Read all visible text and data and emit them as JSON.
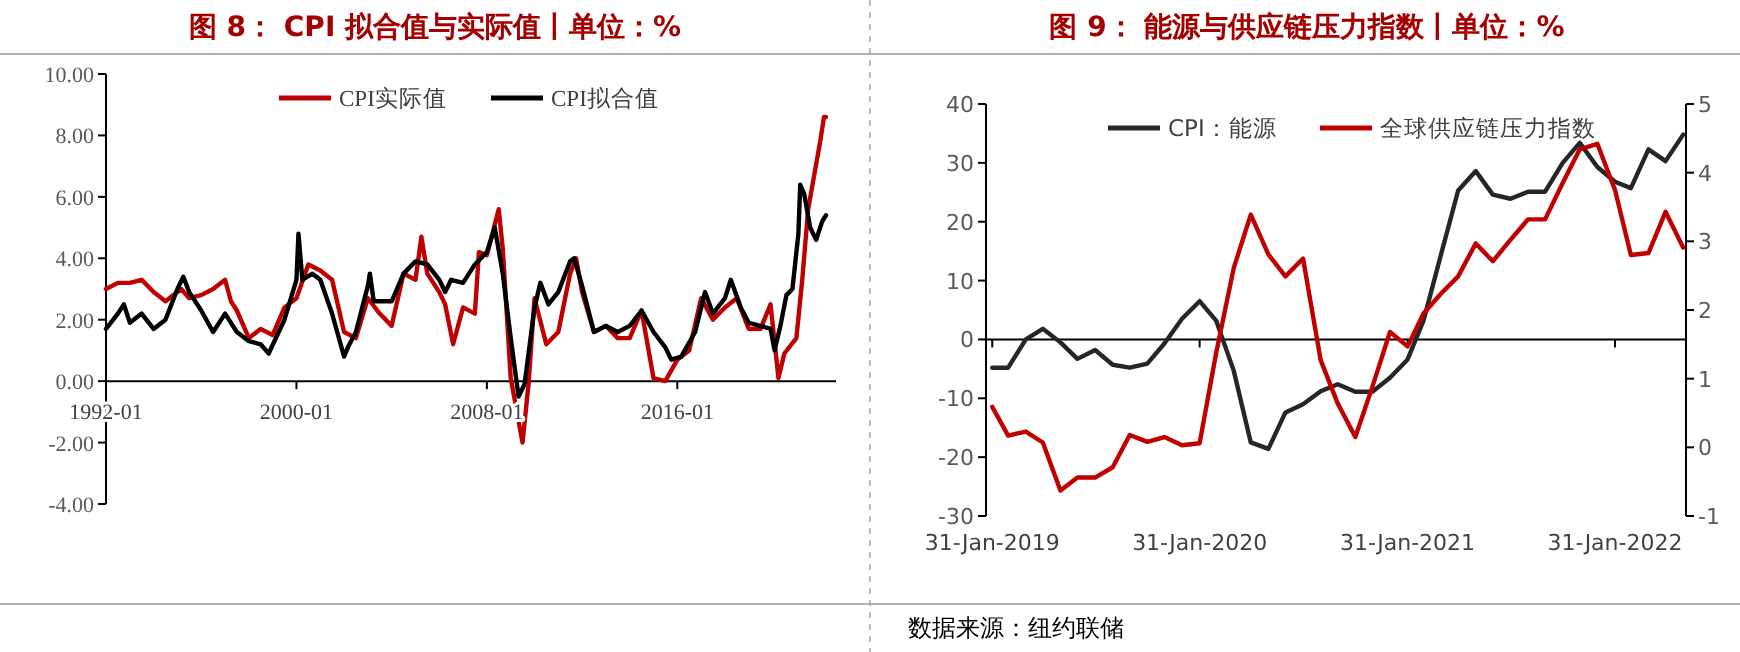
{
  "chart_data": [
    {
      "type": "line",
      "title": "图 8：  CPI 拟合值与实际值丨单位：%",
      "legend": "top",
      "xlim": [
        "1992-01",
        "2022-09"
      ],
      "xticks": [
        "1992-01",
        "2000-01",
        "2008-01",
        "2016-01"
      ],
      "ylim": [
        -4,
        10
      ],
      "yticks": [
        {
          "value": -4,
          "label": "-4.00"
        },
        {
          "value": -2,
          "label": "-2.00"
        },
        {
          "value": 0,
          "label": "0.00"
        },
        {
          "value": 2,
          "label": "2.00"
        },
        {
          "value": 4,
          "label": "4.00"
        },
        {
          "value": 6,
          "label": "6.00"
        },
        {
          "value": 8,
          "label": "8.00"
        },
        {
          "value": 10,
          "label": "10.00"
        }
      ],
      "series": [
        {
          "name": "CPI实际值",
          "color": "#c00000",
          "x": [
            "1992-01",
            "1992-07",
            "1993-01",
            "1993-07",
            "1994-01",
            "1994-07",
            "1995-03",
            "1995-07",
            "1996-01",
            "1996-07",
            "1997-01",
            "1997-04",
            "1997-07",
            "1998-01",
            "1998-07",
            "1999-01",
            "1999-07",
            "2000-01",
            "2000-07",
            "2001-01",
            "2001-07",
            "2002-01",
            "2002-07",
            "2003-01",
            "2003-07",
            "2004-01",
            "2004-07",
            "2005-01",
            "2005-04",
            "2005-07",
            "2006-01",
            "2006-04",
            "2006-08",
            "2007-01",
            "2007-07",
            "2007-09",
            "2008-01",
            "2008-07",
            "2008-09",
            "2009-01",
            "2009-07",
            "2009-10",
            "2010-01",
            "2010-07",
            "2011-01",
            "2011-07",
            "2011-10",
            "2012-01",
            "2012-07",
            "2013-01",
            "2013-07",
            "2014-01",
            "2014-07",
            "2015-01",
            "2015-07",
            "2016-01",
            "2016-07",
            "2017-01",
            "2017-07",
            "2018-01",
            "2018-07",
            "2019-01",
            "2019-07",
            "2019-12",
            "2020-04",
            "2020-07",
            "2021-01",
            "2021-04",
            "2021-07",
            "2021-10",
            "2022-01",
            "2022-03",
            "2022-04"
          ],
          "values": [
            3.0,
            3.2,
            3.2,
            3.3,
            2.9,
            2.6,
            3.0,
            2.7,
            2.8,
            3.0,
            3.3,
            2.6,
            2.3,
            1.4,
            1.7,
            1.5,
            2.4,
            2.7,
            3.8,
            3.6,
            3.3,
            1.6,
            1.4,
            2.7,
            2.2,
            1.8,
            3.5,
            3.3,
            4.7,
            3.5,
            2.9,
            2.5,
            1.2,
            2.4,
            2.2,
            4.2,
            4.1,
            5.6,
            4.3,
            0.1,
            -2.0,
            -0.1,
            2.7,
            1.2,
            1.6,
            3.5,
            4.0,
            2.9,
            1.6,
            1.8,
            1.4,
            1.4,
            2.3,
            0.1,
            0.0,
            0.7,
            1.0,
            2.7,
            2.0,
            2.4,
            2.7,
            1.7,
            1.7,
            2.5,
            0.1,
            0.9,
            1.4,
            3.3,
            5.6,
            6.7,
            7.8,
            8.6,
            8.6
          ]
        },
        {
          "name": "CPI拟合值",
          "color": "#000000",
          "x": [
            "1992-01",
            "1992-07",
            "1992-10",
            "1993-01",
            "1993-07",
            "1994-01",
            "1994-07",
            "1995-01",
            "1995-04",
            "1995-07",
            "1996-01",
            "1996-07",
            "1997-01",
            "1997-07",
            "1998-01",
            "1998-07",
            "1998-11",
            "1999-07",
            "2000-01",
            "2000-02",
            "2000-04",
            "2000-09",
            "2001-01",
            "2001-07",
            "2002-01",
            "2002-03",
            "2002-07",
            "2003-01",
            "2003-02",
            "2003-04",
            "2004-01",
            "2004-07",
            "2005-01",
            "2005-07",
            "2006-01",
            "2006-04",
            "2006-07",
            "2007-01",
            "2007-07",
            "2008-01",
            "2008-05",
            "2008-09",
            "2009-01",
            "2009-05",
            "2009-08",
            "2010-01",
            "2010-04",
            "2010-08",
            "2011-01",
            "2011-07",
            "2011-09",
            "2012-01",
            "2012-07",
            "2013-01",
            "2013-07",
            "2014-01",
            "2014-07",
            "2015-01",
            "2015-07",
            "2015-10",
            "2016-03",
            "2016-10",
            "2017-03",
            "2017-07",
            "2018-01",
            "2018-04",
            "2018-09",
            "2019-01",
            "2019-07",
            "2019-12",
            "2020-02",
            "2020-05",
            "2020-08",
            "2020-11",
            "2021-02",
            "2021-03",
            "2021-05",
            "2021-08",
            "2021-11",
            "2022-02",
            "2022-04"
          ],
          "values": [
            1.7,
            2.2,
            2.5,
            1.9,
            2.2,
            1.7,
            2.0,
            3.0,
            3.4,
            2.9,
            2.3,
            1.6,
            2.2,
            1.6,
            1.3,
            1.2,
            0.9,
            2.0,
            3.3,
            4.8,
            3.3,
            3.5,
            3.3,
            2.2,
            0.8,
            1.1,
            1.6,
            3.1,
            3.5,
            2.6,
            2.6,
            3.5,
            3.9,
            3.8,
            3.3,
            2.9,
            3.3,
            3.2,
            3.8,
            4.2,
            5.0,
            3.5,
            1.4,
            -0.5,
            -0.1,
            2.4,
            3.2,
            2.5,
            2.9,
            3.9,
            4.0,
            3.1,
            1.6,
            1.8,
            1.6,
            1.8,
            2.3,
            1.6,
            1.1,
            0.7,
            0.8,
            1.6,
            2.9,
            2.2,
            2.7,
            3.3,
            2.4,
            1.9,
            1.8,
            1.7,
            1.0,
            1.8,
            2.8,
            3.0,
            4.8,
            6.4,
            6.1,
            5.0,
            4.6,
            5.2,
            5.4
          ]
        }
      ]
    },
    {
      "type": "line",
      "title": "图 9：  能源与供应链压力指数丨单位：%",
      "legend": "top",
      "xlim": [
        "2019-01-20",
        "2022-06-05"
      ],
      "xticks": [
        {
          "value": "2019-01-31",
          "label": "31-Jan-2019"
        },
        {
          "value": "2020-01-31",
          "label": "31-Jan-2020"
        },
        {
          "value": "2021-01-31",
          "label": "31-Jan-2021"
        },
        {
          "value": "2022-01-31",
          "label": "31-Jan-2022"
        }
      ],
      "ylim": [
        -30,
        40
      ],
      "yticks": [
        -30,
        -20,
        -10,
        0,
        10,
        20,
        30,
        40
      ],
      "y2lim": [
        -1,
        5
      ],
      "y2ticks": [
        -1,
        0,
        1,
        2,
        3,
        4,
        5
      ],
      "annotations": [
        "数据来源：纽约联储"
      ],
      "x": [
        "2019-01-31",
        "2019-02-28",
        "2019-03-31",
        "2019-04-30",
        "2019-05-31",
        "2019-06-30",
        "2019-07-31",
        "2019-08-31",
        "2019-09-30",
        "2019-10-31",
        "2019-11-30",
        "2019-12-31",
        "2020-01-31",
        "2020-02-29",
        "2020-03-31",
        "2020-04-30",
        "2020-05-31",
        "2020-06-30",
        "2020-07-31",
        "2020-08-31",
        "2020-09-30",
        "2020-10-31",
        "2020-11-30",
        "2020-12-31",
        "2021-01-31",
        "2021-02-28",
        "2021-03-31",
        "2021-04-30",
        "2021-05-31",
        "2021-06-30",
        "2021-07-31",
        "2021-08-31",
        "2021-09-30",
        "2021-10-31",
        "2021-11-30",
        "2021-12-31",
        "2022-01-31",
        "2022-02-28",
        "2022-03-31",
        "2022-04-30",
        "2022-05-31"
      ],
      "series": [
        {
          "name": "CPI：能源",
          "color": "#262626",
          "values": [
            -4.8,
            -4.8,
            0,
            1.8,
            -0.5,
            -3.3,
            -1.8,
            -4.3,
            -4.8,
            -4.1,
            -0.7,
            3.5,
            6.5,
            3.2,
            -5.3,
            -17.5,
            -18.6,
            -12.4,
            -11.0,
            -8.8,
            -7.6,
            -8.9,
            -8.9,
            -6.5,
            -3.4,
            3.2,
            14.5,
            25.3,
            28.6,
            24.6,
            23.9,
            25.1,
            25.1,
            30.0,
            33.4,
            29.3,
            26.8,
            25.7,
            32.3,
            30.3,
            34.8
          ]
        },
        {
          "name": "全球供应链压力指数",
          "color": "#c00000",
          "axis": "y2",
          "values": [
            0.59,
            0.17,
            0.23,
            0.07,
            -0.63,
            -0.44,
            -0.44,
            -0.29,
            0.18,
            0.08,
            0.15,
            0.03,
            0.06,
            1.37,
            2.61,
            3.39,
            2.81,
            2.49,
            2.75,
            1.27,
            0.64,
            0.15,
            0.88,
            1.68,
            1.47,
            1.95,
            2.24,
            2.49,
            2.97,
            2.71,
            3.02,
            3.32,
            3.32,
            3.85,
            4.34,
            4.42,
            3.75,
            2.8,
            2.83,
            3.43,
            2.91
          ]
        }
      ]
    }
  ]
}
